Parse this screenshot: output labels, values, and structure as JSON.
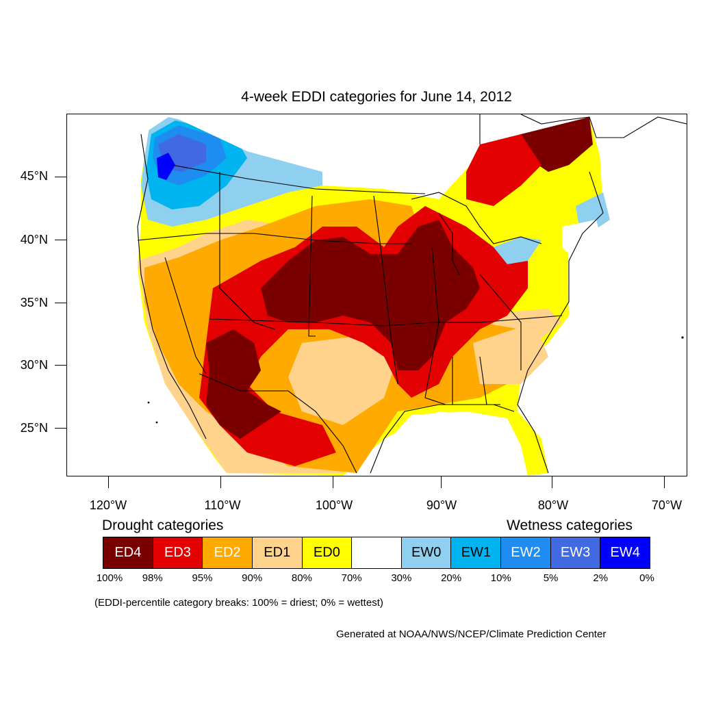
{
  "title": "4-week EDDI categories for June 14, 2012",
  "axes": {
    "lat_labels": [
      "45°N",
      "40°N",
      "35°N",
      "30°N",
      "25°N"
    ],
    "lon_labels": [
      "120°W",
      "110°W",
      "100°W",
      "90°W",
      "80°W",
      "70°W"
    ]
  },
  "legend": {
    "drought_heading": "Drought categories",
    "wetness_heading": "Wetness categories",
    "categories": [
      {
        "label": "ED4",
        "color": "#7a0000",
        "text_color": "#ffffff"
      },
      {
        "label": "ED3",
        "color": "#e30000",
        "text_color": "#ffffff"
      },
      {
        "label": "ED2",
        "color": "#ffaa00",
        "text_color": "#ffffff"
      },
      {
        "label": "ED1",
        "color": "#ffd38c",
        "text_color": "#000000"
      },
      {
        "label": "ED0",
        "color": "#ffff00",
        "text_color": "#000000"
      },
      {
        "label": "",
        "color": "#ffffff",
        "text_color": "#000000"
      },
      {
        "label": "EW0",
        "color": "#8fcff0",
        "text_color": "#000000"
      },
      {
        "label": "EW1",
        "color": "#00b4f0",
        "text_color": "#000000"
      },
      {
        "label": "EW2",
        "color": "#1e8cf0",
        "text_color": "#ffffff"
      },
      {
        "label": "EW3",
        "color": "#4169e1",
        "text_color": "#ffffff"
      },
      {
        "label": "EW4",
        "color": "#0000ff",
        "text_color": "#ffffff"
      }
    ],
    "percent_breaks": [
      "100%",
      "98%",
      "95%",
      "90%",
      "80%",
      "70%",
      "30%",
      "20%",
      "10%",
      "5%",
      "2%",
      "0%"
    ]
  },
  "note": "(EDDI-percentile category breaks: 100% = driest; 0% = wettest)",
  "credit": "Generated at NOAA/NWS/NCEP/Climate Prediction Center"
}
